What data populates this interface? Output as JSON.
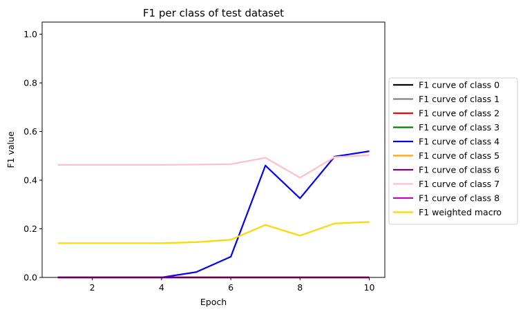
{
  "chart_data": {
    "type": "line",
    "title": "F1 per class of test dataset",
    "xlabel": "Epoch",
    "ylabel": "F1 value",
    "xlim": [
      0.55,
      10.45
    ],
    "ylim": [
      0,
      1.05
    ],
    "xticks": [
      2,
      4,
      6,
      8,
      10
    ],
    "yticks": [
      0.0,
      0.2,
      0.4,
      0.6,
      0.8,
      1.0
    ],
    "ytick_labels": [
      "0.0",
      "0.2",
      "0.4",
      "0.6",
      "0.8",
      "1.0"
    ],
    "grid": false,
    "legend_position": "outside-right",
    "x": [
      1,
      2,
      3,
      4,
      5,
      6,
      7,
      8,
      9,
      10
    ],
    "series": [
      {
        "name": "F1 curve of class 0",
        "color": "#000000",
        "values": [
          0,
          0,
          0,
          0,
          0,
          0,
          0,
          0,
          0,
          0
        ]
      },
      {
        "name": "F1 curve of class 1",
        "color": "#808080",
        "values": [
          0,
          0,
          0,
          0,
          0,
          0,
          0,
          0,
          0,
          0
        ]
      },
      {
        "name": "F1 curve of class 2",
        "color": "#ff0000",
        "values": [
          0,
          0,
          0,
          0,
          0,
          0,
          0,
          0,
          0,
          0
        ]
      },
      {
        "name": "F1 curve of class 3",
        "color": "#008000",
        "values": [
          0,
          0,
          0,
          0,
          0,
          0,
          0,
          0,
          0,
          0
        ]
      },
      {
        "name": "F1 curve of class 4",
        "color": "#0000ff",
        "values": [
          0,
          0,
          0,
          0,
          0.022,
          0.085,
          0.46,
          0.325,
          0.497,
          0.519
        ]
      },
      {
        "name": "F1 curve of class 5",
        "color": "#ffa500",
        "values": [
          0,
          0,
          0,
          0,
          0,
          0,
          0,
          0,
          0,
          0
        ]
      },
      {
        "name": "F1 curve of class 6",
        "color": "#800080",
        "values": [
          0,
          0,
          0,
          0,
          0,
          0,
          0,
          0,
          0,
          0
        ]
      },
      {
        "name": "F1 curve of class 7",
        "color": "#ffc0cb",
        "values": [
          0.463,
          0.463,
          0.463,
          0.463,
          0.464,
          0.466,
          0.492,
          0.41,
          0.495,
          0.503
        ]
      },
      {
        "name": "F1 curve of class 8",
        "color": "#bf00bf",
        "values": [
          0,
          0,
          0,
          0,
          0,
          0,
          0,
          0,
          0,
          0
        ]
      },
      {
        "name": "F1 weighted macro",
        "color": "#ffd700",
        "values": [
          0.141,
          0.141,
          0.141,
          0.141,
          0.145,
          0.155,
          0.216,
          0.172,
          0.222,
          0.228
        ]
      }
    ]
  }
}
